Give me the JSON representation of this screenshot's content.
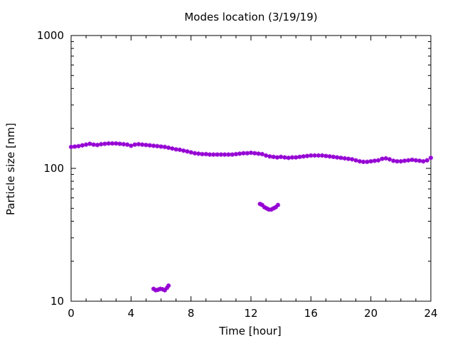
{
  "chart_data": {
    "type": "scatter",
    "title": "Modes location (3/19/19)",
    "xlabel": "Time [hour]",
    "ylabel": "Particle size [nm]",
    "xlim": [
      0,
      24
    ],
    "ylim": [
      10,
      1000
    ],
    "yscale": "log",
    "grid": false,
    "legend": "none",
    "xticks": [
      "0",
      "4",
      "8",
      "12",
      "16",
      "20",
      "24"
    ],
    "xtick_values": [
      0,
      4,
      8,
      12,
      16,
      20,
      24
    ],
    "yticks": [
      "10",
      "100",
      "1000"
    ],
    "ytick_values": [
      10,
      100,
      1000
    ],
    "series": [
      {
        "color": "#9400d3",
        "marker": "star",
        "x": [
          0.0,
          0.25,
          0.5,
          0.75,
          1.0,
          1.25,
          1.5,
          1.75,
          2.0,
          2.25,
          2.5,
          2.75,
          3.0,
          3.25,
          3.5,
          3.75,
          4.0,
          4.25,
          4.5,
          4.75,
          5.0,
          5.25,
          5.5,
          5.75,
          6.0,
          6.25,
          6.5,
          6.75,
          7.0,
          7.25,
          7.5,
          7.75,
          8.0,
          8.25,
          8.5,
          8.75,
          9.0,
          9.25,
          9.5,
          9.75,
          10.0,
          10.25,
          10.5,
          10.75,
          11.0,
          11.25,
          11.5,
          11.75,
          12.0,
          12.25,
          12.5,
          12.75,
          13.0,
          13.25,
          13.5,
          13.75,
          14.0,
          14.25,
          14.5,
          14.75,
          15.0,
          15.25,
          15.5,
          15.75,
          16.0,
          16.25,
          16.5,
          16.75,
          17.0,
          17.25,
          17.5,
          17.75,
          18.0,
          18.25,
          18.5,
          18.75,
          19.0,
          19.25,
          19.5,
          19.75,
          20.0,
          20.25,
          20.5,
          20.75,
          21.0,
          21.25,
          21.5,
          21.75,
          22.0,
          22.25,
          22.5,
          22.75,
          23.0,
          23.25,
          23.5,
          23.75,
          24.0
        ],
        "y": [
          145,
          146,
          147,
          149,
          151,
          153,
          151,
          150,
          152,
          153,
          154,
          154,
          154,
          153,
          152,
          151,
          148,
          151,
          152,
          151,
          150,
          149,
          148,
          147,
          146,
          145,
          143,
          141,
          139,
          138,
          136,
          134,
          132,
          130,
          129,
          128,
          128,
          127,
          127,
          127,
          127,
          127,
          127,
          127,
          128,
          129,
          130,
          130,
          131,
          130,
          129,
          128,
          125,
          123,
          122,
          121,
          122,
          121,
          120,
          121,
          121,
          122,
          123,
          124,
          125,
          125,
          125,
          125,
          124,
          123,
          122,
          121,
          120,
          119,
          118,
          117,
          115,
          113,
          112,
          112,
          113,
          114,
          115,
          118,
          119,
          117,
          114,
          113,
          113,
          114,
          115,
          116,
          115,
          114,
          113,
          115,
          120
        ]
      },
      {
        "color": "#9400d3",
        "marker": "star",
        "x": [
          5.5,
          5.65,
          5.8,
          5.95,
          6.1,
          6.25,
          6.4,
          6.5
        ],
        "y": [
          12.4,
          12.1,
          12.2,
          12.4,
          12.3,
          12.1,
          12.6,
          13.1
        ]
      },
      {
        "color": "#9400d3",
        "marker": "star",
        "x": [
          12.6,
          12.75,
          12.9,
          13.05,
          13.2,
          13.35,
          13.5,
          13.65,
          13.8
        ],
        "y": [
          54,
          53,
          51,
          50,
          49,
          49,
          50,
          51,
          53
        ]
      }
    ]
  }
}
